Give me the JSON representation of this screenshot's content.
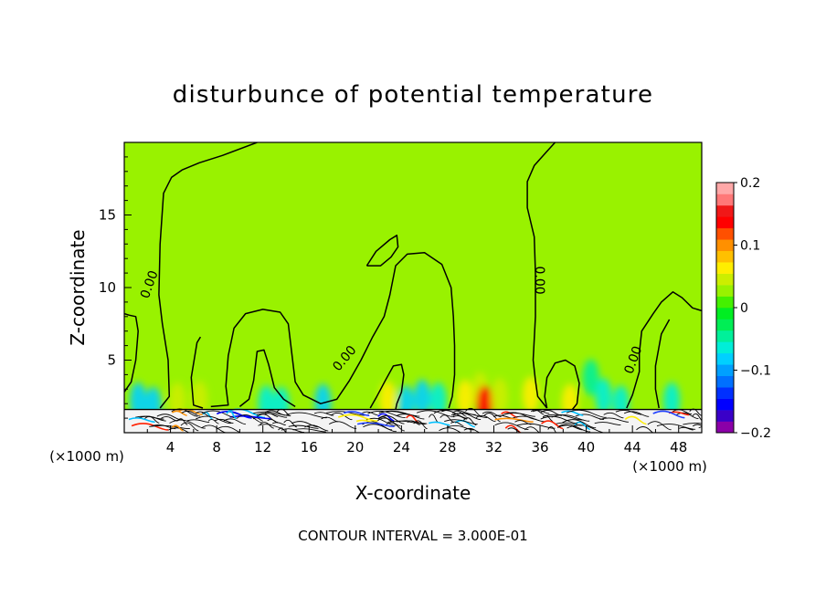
{
  "chart_data": {
    "type": "heatmap",
    "title": "disturbunce of potential temperature",
    "xlabel": "X-coordinate",
    "ylabel": "Z-coordinate",
    "x_unit_left": "(×1000 m)",
    "x_unit_right": "(×1000 m)",
    "xlim": [
      0,
      50
    ],
    "ylim": [
      0,
      20
    ],
    "x_ticks": [
      4,
      8,
      12,
      16,
      20,
      24,
      28,
      32,
      36,
      40,
      44,
      48
    ],
    "y_ticks": [
      5,
      10,
      15
    ],
    "footer": "CONTOUR INTERVAL = 3.000E-01",
    "contour_label": "0.00",
    "colorbar": {
      "min": -0.2,
      "max": 0.2,
      "tick_values": [
        0.2,
        0.1,
        0,
        -0.1,
        -0.2
      ],
      "tick_labels": [
        "0.2",
        "0.1",
        "0",
        "−0.1",
        "−0.2"
      ],
      "colors": [
        "#8b00a8",
        "#3a00c8",
        "#0000ff",
        "#0030ff",
        "#0070ff",
        "#00a0ff",
        "#00d0ff",
        "#00eed8",
        "#00f09a",
        "#00ee55",
        "#00ee22",
        "#44f000",
        "#99f200",
        "#ccee00",
        "#ffee00",
        "#ffc000",
        "#ff9000",
        "#ff5000",
        "#ff0000",
        "#f01818",
        "#ff7878",
        "#ffa8a8"
      ]
    },
    "background_value": 0.02,
    "zero_contours": [
      [
        [
          0,
          2.8
        ],
        [
          0.6,
          3.5
        ],
        [
          1.0,
          5
        ],
        [
          1.2,
          7
        ],
        [
          1.0,
          8
        ],
        [
          0.4,
          8.1
        ],
        [
          0,
          8.2
        ]
      ],
      [
        [
          3.1,
          1.7
        ],
        [
          3.9,
          2.5
        ],
        [
          3.8,
          5
        ],
        [
          3.3,
          7.5
        ],
        [
          3.0,
          9.5
        ],
        [
          3.1,
          13
        ],
        [
          3.4,
          16.5
        ],
        [
          4.1,
          17.6
        ],
        [
          5,
          18.1
        ],
        [
          6.5,
          18.6
        ],
        [
          8.5,
          19.1
        ],
        [
          11.5,
          20
        ]
      ],
      [
        [
          6.8,
          1.7
        ],
        [
          6.0,
          1.9
        ],
        [
          5.8,
          3.8
        ],
        [
          6.3,
          6.2
        ],
        [
          6.6,
          6.6
        ]
      ],
      [
        [
          7.5,
          1.8
        ],
        [
          9.0,
          1.9
        ],
        [
          8.8,
          3.2
        ],
        [
          9.0,
          5.3
        ],
        [
          9.5,
          7.2
        ],
        [
          10.5,
          8.2
        ],
        [
          12.0,
          8.5
        ],
        [
          13.5,
          8.3
        ],
        [
          14.2,
          7.5
        ],
        [
          14.5,
          5.5
        ],
        [
          14.8,
          3.5
        ],
        [
          15.5,
          2.6
        ],
        [
          17.0,
          2.0
        ],
        [
          18.4,
          2.3
        ],
        [
          19.5,
          3.6
        ],
        [
          20.5,
          5
        ],
        [
          21.5,
          6.6
        ],
        [
          22.5,
          8
        ],
        [
          23.0,
          9.5
        ],
        [
          23.5,
          11.5
        ],
        [
          24.5,
          12.3
        ],
        [
          26,
          12.4
        ],
        [
          27.5,
          11.6
        ],
        [
          28.3,
          10
        ],
        [
          28.5,
          8
        ],
        [
          28.6,
          6
        ],
        [
          28.6,
          4
        ],
        [
          28.4,
          2.5
        ],
        [
          28.1,
          1.7
        ]
      ],
      [
        [
          10.0,
          1.8
        ],
        [
          10.8,
          2.3
        ],
        [
          11.2,
          3.6
        ],
        [
          11.5,
          5.6
        ],
        [
          12.1,
          5.7
        ],
        [
          12.5,
          4.7
        ],
        [
          13.0,
          3.1
        ],
        [
          13.8,
          2.3
        ],
        [
          14.8,
          1.8
        ]
      ],
      [
        [
          21.0,
          11.5
        ],
        [
          21.8,
          12.5
        ],
        [
          23,
          13.3
        ],
        [
          23.6,
          13.6
        ],
        [
          23.7,
          12.8
        ],
        [
          23.1,
          12.1
        ],
        [
          22.2,
          11.5
        ],
        [
          21.0,
          11.5
        ]
      ],
      [
        [
          21.3,
          1.7
        ],
        [
          21.8,
          2.4
        ],
        [
          22.6,
          3.6
        ],
        [
          23.3,
          4.6
        ],
        [
          24.0,
          4.7
        ],
        [
          24.2,
          4.0
        ],
        [
          24.0,
          2.8
        ],
        [
          23.6,
          2.0
        ],
        [
          23.5,
          1.6
        ]
      ],
      [
        [
          36.6,
          1.7
        ],
        [
          35.8,
          2.5
        ],
        [
          35.6,
          3.6
        ],
        [
          35.4,
          5
        ],
        [
          35.6,
          8
        ],
        [
          35.6,
          11
        ],
        [
          35.5,
          13.5
        ],
        [
          34.9,
          15.5
        ],
        [
          34.9,
          17.3
        ],
        [
          35.5,
          18.4
        ],
        [
          36.5,
          19.3
        ],
        [
          37.3,
          20
        ]
      ],
      [
        [
          36.6,
          1.7
        ],
        [
          36.4,
          2.5
        ],
        [
          36.6,
          3.8
        ],
        [
          37.3,
          4.8
        ],
        [
          38.2,
          5.0
        ],
        [
          39.0,
          4.6
        ],
        [
          39.4,
          3.4
        ],
        [
          39.2,
          2.0
        ],
        [
          38.8,
          1.6
        ]
      ],
      [
        [
          43.5,
          1.7
        ],
        [
          44.0,
          2.6
        ],
        [
          44.6,
          4.2
        ],
        [
          44.6,
          5.5
        ],
        [
          44.8,
          7.0
        ],
        [
          45.8,
          8.2
        ],
        [
          46.5,
          9.0
        ],
        [
          47.5,
          9.7
        ],
        [
          48.3,
          9.3
        ],
        [
          49.2,
          8.6
        ],
        [
          50,
          8.4
        ]
      ],
      [
        [
          46.3,
          1.7
        ],
        [
          46.0,
          3.0
        ],
        [
          46.0,
          4.6
        ],
        [
          46.5,
          6.8
        ],
        [
          47.2,
          7.8
        ]
      ]
    ],
    "contour_labels": [
      {
        "x": 2.2,
        "y": 10.2,
        "angle": -70
      },
      {
        "x": 19.1,
        "y": 5.1,
        "angle": -50
      },
      {
        "x": 35.9,
        "y": 10.5,
        "angle": 90
      },
      {
        "x": 44.1,
        "y": 5.0,
        "angle": -70
      }
    ],
    "anomaly_patches": [
      {
        "x": 1.2,
        "y": 2.2,
        "value": -0.08
      },
      {
        "x": 2.5,
        "y": 1.9,
        "value": -0.09
      },
      {
        "x": 4.6,
        "y": 2.2,
        "value": 0.04
      },
      {
        "x": 6.5,
        "y": 2.3,
        "value": 0.05
      },
      {
        "x": 12.3,
        "y": 2.0,
        "value": -0.07
      },
      {
        "x": 13.6,
        "y": 1.9,
        "value": -0.06
      },
      {
        "x": 17.2,
        "y": 2.1,
        "value": -0.08
      },
      {
        "x": 22.8,
        "y": 2.3,
        "value": 0.06
      },
      {
        "x": 24.4,
        "y": 2.0,
        "value": -0.08
      },
      {
        "x": 25.8,
        "y": 2.4,
        "value": -0.09
      },
      {
        "x": 27.2,
        "y": 2.2,
        "value": -0.07
      },
      {
        "x": 29.5,
        "y": 2.4,
        "value": 0.06
      },
      {
        "x": 30.8,
        "y": 2.9,
        "value": 0.05
      },
      {
        "x": 31.2,
        "y": 2.0,
        "value": 0.14
      },
      {
        "x": 32.5,
        "y": 2.5,
        "value": 0.05
      },
      {
        "x": 35.2,
        "y": 2.6,
        "value": 0.06
      },
      {
        "x": 38.6,
        "y": 2.1,
        "value": 0.07
      },
      {
        "x": 40.4,
        "y": 3.8,
        "value": -0.05
      },
      {
        "x": 41.5,
        "y": 2.5,
        "value": -0.07
      },
      {
        "x": 43.0,
        "y": 2.0,
        "value": -0.06
      },
      {
        "x": 47.4,
        "y": 2.2,
        "value": -0.06
      }
    ],
    "surface_layer": {
      "z_top": 1.6
    }
  }
}
